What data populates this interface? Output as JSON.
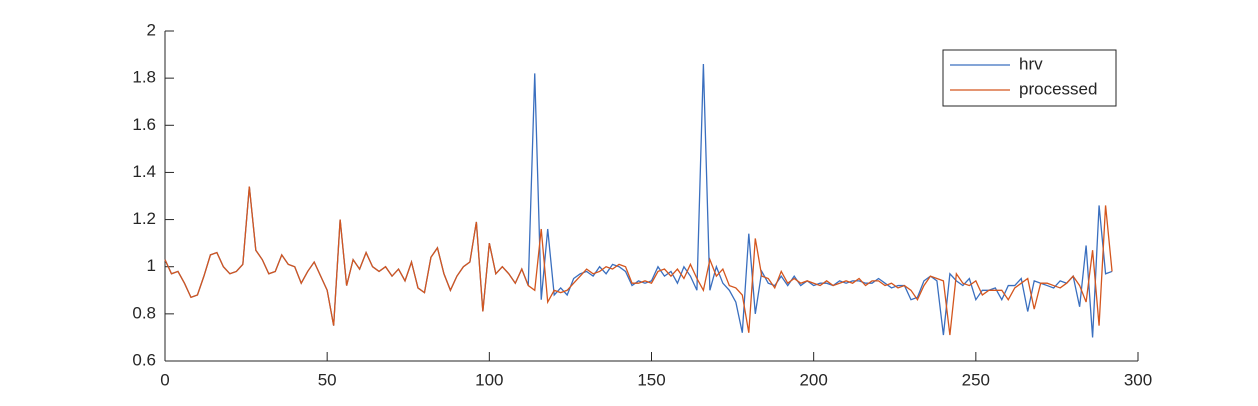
{
  "chart_data": {
    "type": "line",
    "x": [
      0,
      2,
      4,
      6,
      8,
      10,
      12,
      14,
      16,
      18,
      20,
      22,
      24,
      26,
      28,
      30,
      32,
      34,
      36,
      38,
      40,
      42,
      44,
      46,
      48,
      50,
      52,
      54,
      56,
      58,
      60,
      62,
      64,
      66,
      68,
      70,
      72,
      74,
      76,
      78,
      80,
      82,
      84,
      86,
      88,
      90,
      92,
      94,
      96,
      98,
      100,
      102,
      104,
      106,
      108,
      110,
      112,
      114,
      116,
      118,
      120,
      122,
      124,
      126,
      128,
      130,
      132,
      134,
      136,
      138,
      140,
      142,
      144,
      146,
      148,
      150,
      152,
      154,
      156,
      158,
      160,
      162,
      164,
      166,
      168,
      170,
      172,
      174,
      176,
      178,
      180,
      182,
      184,
      186,
      188,
      190,
      192,
      194,
      196,
      198,
      200,
      202,
      204,
      206,
      208,
      210,
      212,
      214,
      216,
      218,
      220,
      222,
      224,
      226,
      228,
      230,
      232,
      234,
      236,
      238,
      240,
      242,
      244,
      246,
      248,
      250,
      252,
      254,
      256,
      258,
      260,
      262,
      264,
      266,
      268,
      270,
      272,
      274,
      276,
      278,
      280,
      282,
      284,
      286,
      288,
      290,
      292
    ],
    "series": [
      {
        "name": "hrv",
        "color": "#3a6fbf",
        "values": [
          1.03,
          0.97,
          0.98,
          0.93,
          0.87,
          0.88,
          0.96,
          1.05,
          1.06,
          1.0,
          0.97,
          0.98,
          1.01,
          1.34,
          1.07,
          1.03,
          0.97,
          0.98,
          1.05,
          1.01,
          1.0,
          0.93,
          0.98,
          1.02,
          0.96,
          0.9,
          0.75,
          1.2,
          0.92,
          1.03,
          0.99,
          1.06,
          1.0,
          0.98,
          1.0,
          0.96,
          0.99,
          0.94,
          1.02,
          0.91,
          0.89,
          1.04,
          1.08,
          0.97,
          0.9,
          0.96,
          1.0,
          1.02,
          1.19,
          0.81,
          1.1,
          0.97,
          1.0,
          0.97,
          0.93,
          0.99,
          0.92,
          1.82,
          0.86,
          1.16,
          0.88,
          0.91,
          0.88,
          0.95,
          0.97,
          0.98,
          0.96,
          1.0,
          0.97,
          1.01,
          1.0,
          0.98,
          0.92,
          0.94,
          0.93,
          0.94,
          1.0,
          0.96,
          0.98,
          0.93,
          1.0,
          0.96,
          0.9,
          1.86,
          0.9,
          1.0,
          0.93,
          0.9,
          0.85,
          0.72,
          1.14,
          0.8,
          0.98,
          0.93,
          0.92,
          0.96,
          0.92,
          0.96,
          0.92,
          0.94,
          0.92,
          0.93,
          0.93,
          0.92,
          0.94,
          0.93,
          0.94,
          0.94,
          0.93,
          0.93,
          0.95,
          0.93,
          0.91,
          0.92,
          0.92,
          0.86,
          0.87,
          0.94,
          0.96,
          0.94,
          0.71,
          0.97,
          0.94,
          0.92,
          0.95,
          0.86,
          0.9,
          0.9,
          0.91,
          0.86,
          0.92,
          0.92,
          0.95,
          0.81,
          0.94,
          0.93,
          0.92,
          0.91,
          0.94,
          0.93,
          0.96,
          0.83,
          1.09,
          0.7,
          1.26,
          0.97,
          0.98
        ]
      },
      {
        "name": "processed",
        "color": "#d4561e",
        "values": [
          1.03,
          0.97,
          0.98,
          0.93,
          0.87,
          0.88,
          0.96,
          1.05,
          1.06,
          1.0,
          0.97,
          0.98,
          1.01,
          1.34,
          1.07,
          1.03,
          0.97,
          0.98,
          1.05,
          1.01,
          1.0,
          0.93,
          0.98,
          1.02,
          0.96,
          0.9,
          0.75,
          1.2,
          0.92,
          1.03,
          0.99,
          1.06,
          1.0,
          0.98,
          1.0,
          0.96,
          0.99,
          0.94,
          1.02,
          0.91,
          0.89,
          1.04,
          1.08,
          0.97,
          0.9,
          0.96,
          1.0,
          1.02,
          1.19,
          0.81,
          1.1,
          0.97,
          1.0,
          0.97,
          0.93,
          0.99,
          0.92,
          0.9,
          1.16,
          0.85,
          0.9,
          0.89,
          0.9,
          0.93,
          0.96,
          0.99,
          0.97,
          0.98,
          1.0,
          0.99,
          1.01,
          1.0,
          0.93,
          0.93,
          0.94,
          0.93,
          0.98,
          0.99,
          0.96,
          0.99,
          0.95,
          1.01,
          0.95,
          0.9,
          1.03,
          0.96,
          0.99,
          0.92,
          0.91,
          0.88,
          0.72,
          1.12,
          0.96,
          0.95,
          0.91,
          0.98,
          0.93,
          0.95,
          0.93,
          0.94,
          0.93,
          0.92,
          0.94,
          0.92,
          0.93,
          0.94,
          0.93,
          0.95,
          0.92,
          0.94,
          0.94,
          0.92,
          0.93,
          0.91,
          0.92,
          0.9,
          0.86,
          0.92,
          0.96,
          0.95,
          0.94,
          0.71,
          0.97,
          0.93,
          0.92,
          0.94,
          0.88,
          0.9,
          0.9,
          0.9,
          0.86,
          0.91,
          0.93,
          0.95,
          0.82,
          0.93,
          0.93,
          0.92,
          0.91,
          0.93,
          0.96,
          0.92,
          0.85,
          1.07,
          0.75,
          1.26,
          0.98
        ]
      }
    ],
    "xlim": [
      0,
      300
    ],
    "xticks": [
      0,
      50,
      100,
      150,
      200,
      250,
      300
    ],
    "ylim": [
      0.6,
      2
    ],
    "yticks": [
      0.6,
      0.8,
      1,
      1.2,
      1.4,
      1.6,
      1.8,
      2
    ],
    "legend": "northeast"
  }
}
